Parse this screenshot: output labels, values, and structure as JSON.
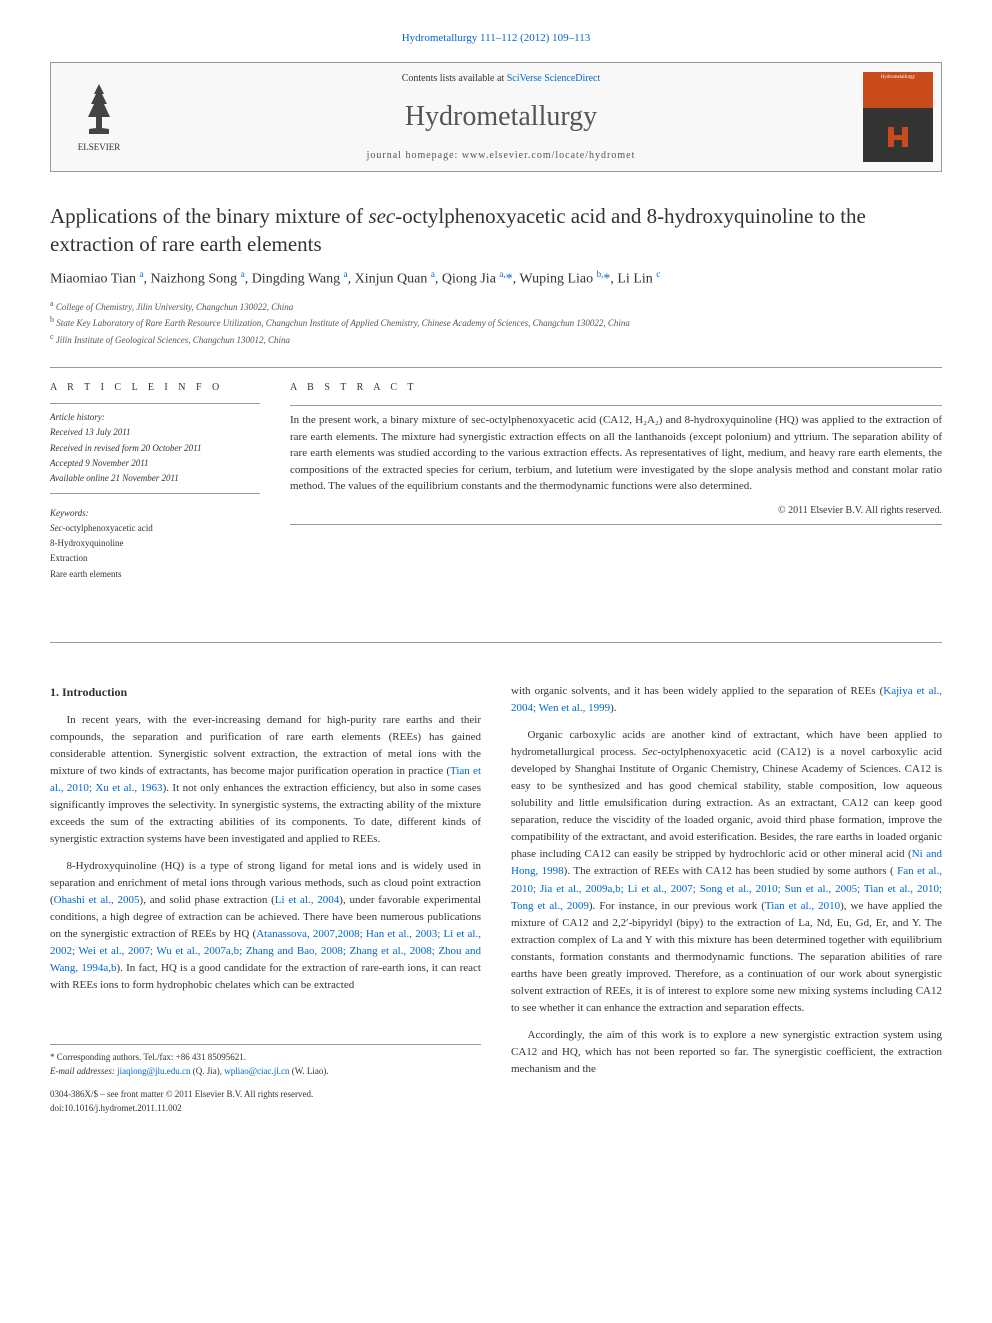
{
  "journal_link_text": "Hydrometallurgy 111–112 (2012) 109–113",
  "header": {
    "elsevier_label": "ELSEVIER",
    "contents_prefix": "Contents lists available at ",
    "contents_link": "SciVerse ScienceDirect",
    "journal_name": "Hydrometallurgy",
    "homepage_label": "journal homepage: www.elsevier.com/locate/hydromet",
    "cover_label": "Hydrometallurgy"
  },
  "article": {
    "title_prefix": "Applications of the binary mixture of ",
    "title_ital": "sec",
    "title_suffix": "-octylphenoxyacetic acid and 8-hydroxyquinoline to the extraction of rare earth elements",
    "authors_html": "Miaomiao Tian <sup>a</sup>, Naizhong Song <sup>a</sup>, Dingding Wang <sup>a</sup>, Xinjun Quan <sup>a</sup>, Qiong Jia <sup>a,</sup><span class='star'>*</span>, Wuping Liao <sup>b,</sup><span class='star'>*</span>, Li Lin <sup>c</sup>",
    "affiliations": [
      {
        "sup": "a",
        "text": "College of Chemistry, Jilin University, Changchun 130022, China"
      },
      {
        "sup": "b",
        "text": "State Key Laboratory of Rare Earth Resource Utilization, Changchun Institute of Applied Chemistry, Chinese Academy of Sciences, Changchun 130022, China"
      },
      {
        "sup": "c",
        "text": "Jilin Institute of Geological Sciences, Changchun 130012, China"
      }
    ]
  },
  "info": {
    "heading": "A R T I C L E   I N F O",
    "history_head": "Article history:",
    "received": "Received 13 July 2011",
    "revised": "Received in revised form 20 October 2011",
    "accepted": "Accepted 9 November 2011",
    "online": "Available online 21 November 2011",
    "keywords_head": "Keywords:",
    "keywords": [
      "Sec-octylphenoxyacetic acid",
      "8-Hydroxyquinoline",
      "Extraction",
      "Rare earth elements"
    ]
  },
  "abstract": {
    "heading": "A B S T R A C T",
    "text": "In the present work, a binary mixture of sec-octylphenoxyacetic acid (CA12, H₂A₂) and 8-hydroxyquinoline (HQ) was applied to the extraction of rare earth elements. The mixture had synergistic extraction effects on all the lanthanoids (except polonium) and yttrium. The separation ability of rare earth elements was studied according to the various extraction effects. As representatives of light, medium, and heavy rare earth elements, the compositions of the extracted species for cerium, terbium, and lutetium were investigated by the slope analysis method and constant molar ratio method. The values of the equilibrium constants and the thermodynamic functions were also determined.",
    "copyright": "© 2011 Elsevier B.V. All rights reserved."
  },
  "body": {
    "section1_head": "1. Introduction",
    "left_paras": [
      "In recent years, with the ever-increasing demand for high-purity rare earths and their compounds, the separation and purification of rare earth elements (REEs) has gained considerable attention. Synergistic solvent extraction, the extraction of metal ions with the mixture of two kinds of extractants, has become major purification operation in practice (<a class='ref-link' data-name='ref-link' data-interactable='true'>Tian et al., 2010; Xu et al., 1963</a>). It not only enhances the extraction efficiency, but also in some cases significantly improves the selectivity. In synergistic systems, the extracting ability of the mixture exceeds the sum of the extracting abilities of its components. To date, different kinds of synergistic extraction systems have been investigated and applied to REEs.",
      "8-Hydroxyquinoline (HQ) is a type of strong ligand for metal ions and is widely used in separation and enrichment of metal ions through various methods, such as cloud point extraction (<a class='ref-link' data-name='ref-link' data-interactable='true'>Ohashi et al., 2005</a>), and solid phase extraction (<a class='ref-link' data-name='ref-link' data-interactable='true'>Li et al., 2004</a>), under favorable experimental conditions, a high degree of extraction can be achieved. There have been numerous publications on the synergistic extraction of REEs by HQ (<a class='ref-link' data-name='ref-link' data-interactable='true'>Atanassova, 2007,2008; Han et al., 2003; Li et al., 2002; Wei et al., 2007; Wu et al., 2007a,b; Zhang and Bao, 2008; Zhang et al., 2008; Zhou and Wang, 1994a,b</a>). In fact, HQ is a good candidate for the extraction of rare-earth ions, it can react with REEs ions to form hydrophobic chelates which can be extracted"
    ],
    "right_paras": [
      "with organic solvents, and it has been widely applied to the separation of REEs (<a class='ref-link' data-name='ref-link' data-interactable='true'>Kajiya et al., 2004; Wen et al., 1999</a>).",
      "Organic carboxylic acids are another kind of extractant, which have been applied to hydrometallurgical process. <span class='italic'>Sec</span>-octylphenoxyacetic acid (CA12) is a novel carboxylic acid developed by Shanghai Institute of Organic Chemistry, Chinese Academy of Sciences. CA12 is easy to be synthesized and has good chemical stability, stable composition, low aqueous solubility and little emulsification during extraction. As an extractant, CA12 can keep good separation, reduce the viscidity of the loaded organic, avoid third phase formation, improve the compatibility of the extractant, and avoid esterification. Besides, the rare earths in loaded organic phase including CA12 can easily be stripped by hydrochloric acid or other mineral acid (<a class='ref-link' data-name='ref-link' data-interactable='true'>Ni and Hong, 1998</a>). The extraction of REEs with CA12 has been studied by some authors (<a class='ref-link' data-name='ref-link' data-interactable='true'> Fan et al., 2010; Jia et al., 2009a,b; Li et al., 2007; Song et al., 2010; Sun et al., 2005; Tian et al., 2010; Tong et al., 2009</a>). For instance, in our previous work (<a class='ref-link' data-name='ref-link' data-interactable='true'>Tian et al., 2010</a>), we have applied the mixture of CA12 and 2,2′-bipyridyl (bipy) to the extraction of La, Nd, Eu, Gd, Er, and Y. The extraction complex of La and Y with this mixture has been determined together with equilibrium constants, formation constants and thermodynamic functions. The separation abilities of rare earths have been greatly improved. Therefore, as a continuation of our work about synergistic solvent extraction of REEs, it is of interest to explore some new mixing systems including CA12 to see whether it can enhance the extraction and separation effects.",
      "Accordingly, the aim of this work is to explore a new synergistic extraction system using CA12 and HQ, which has not been reported so far. The synergistic coefficient, the extraction mechanism and the"
    ]
  },
  "footer": {
    "corr_text": "* Corresponding authors. Tel./fax: +86 431 85095621.",
    "email_label": "E-mail addresses:",
    "email1": "jiaqiong@jlu.edu.cn",
    "email1_aff": " (Q. Jia), ",
    "email2": "wpliao@ciac.jl.cn",
    "email2_aff": " (W. Liao).",
    "line1": "0304-386X/$ – see front matter © 2011 Elsevier B.V. All rights reserved.",
    "doi": "doi:10.1016/j.hydromet.2011.11.002"
  },
  "colors": {
    "link": "#0066cc",
    "text": "#333333",
    "rule": "#999999",
    "cover_top": "#c94a1a",
    "cover_bottom": "#333333"
  }
}
